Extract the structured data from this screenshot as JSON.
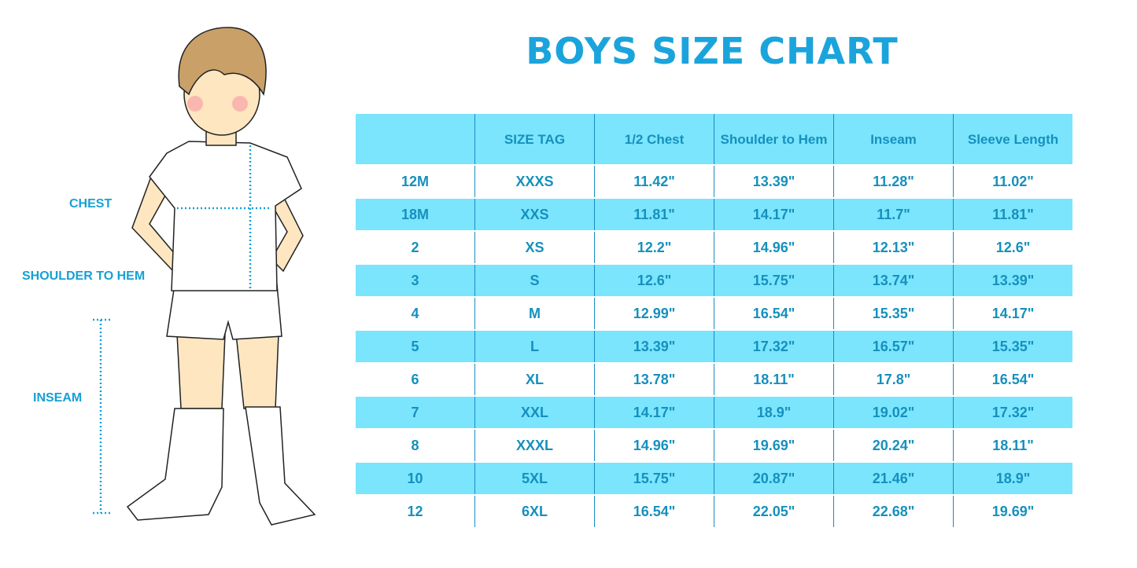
{
  "title": "BOYS SIZE CHART",
  "measure_labels": {
    "chest": "CHEST",
    "shoulder_to_hem": "SHOULDER TO HEM",
    "inseam": "INSEAM"
  },
  "colors": {
    "accent": "#1ba4dc",
    "stripe": "#7ae5fd",
    "text": "#1690bd"
  },
  "table": {
    "headers": [
      "",
      "SIZE TAG",
      "1/2 Chest",
      "Shoulder to Hem",
      "Inseam",
      "Sleeve Length"
    ],
    "rows": [
      [
        "12M",
        "XXXS",
        "11.42\"",
        "13.39\"",
        "11.28\"",
        "11.02\""
      ],
      [
        "18M",
        "XXS",
        "11.81\"",
        "14.17\"",
        "11.7\"",
        "11.81\""
      ],
      [
        "2",
        "XS",
        "12.2\"",
        "14.96\"",
        "12.13\"",
        "12.6\""
      ],
      [
        "3",
        "S",
        "12.6\"",
        "15.75\"",
        "13.74\"",
        "13.39\""
      ],
      [
        "4",
        "M",
        "12.99\"",
        "16.54\"",
        "15.35\"",
        "14.17\""
      ],
      [
        "5",
        "L",
        "13.39\"",
        "17.32\"",
        "16.57\"",
        "15.35\""
      ],
      [
        "6",
        "XL",
        "13.78\"",
        "18.11\"",
        "17.8\"",
        "16.54\""
      ],
      [
        "7",
        "XXL",
        "14.17\"",
        "18.9\"",
        "19.02\"",
        "17.32\""
      ],
      [
        "8",
        "XXXL",
        "14.96\"",
        "19.69\"",
        "20.24\"",
        "18.11\""
      ],
      [
        "10",
        "5XL",
        "15.75\"",
        "20.87\"",
        "21.46\"",
        "18.9\""
      ],
      [
        "12",
        "6XL",
        "16.54\"",
        "22.05\"",
        "22.68\"",
        "19.69\""
      ]
    ]
  }
}
